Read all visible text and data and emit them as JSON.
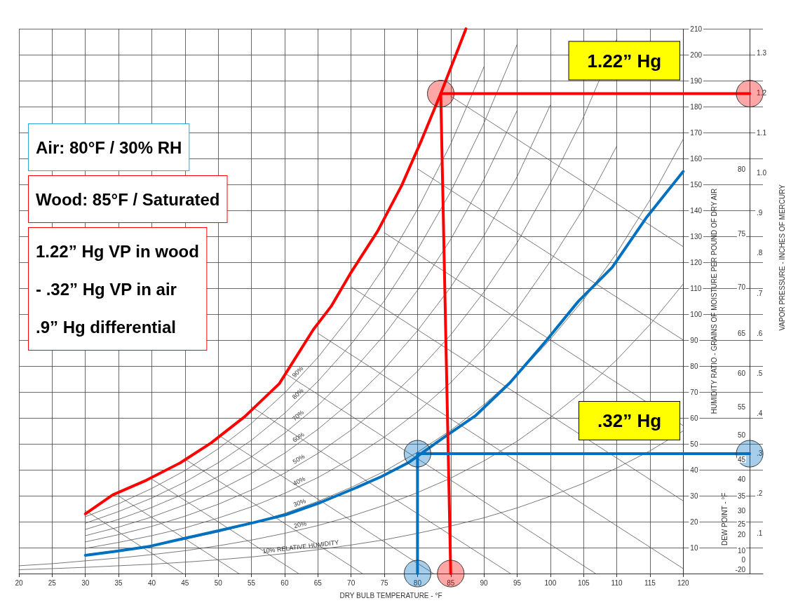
{
  "chart_data": {
    "type": "line",
    "xlabel": "DRY BULB TEMPERATURE - °F",
    "ylabel": "HUMIDITY RATIO - GRAINS OF MOISTURE PER POUND OF DRY AIR",
    "y2label": "VAPOR PRESSURE - INCHES OF MERCURY",
    "xlim": [
      20,
      132
    ],
    "xticks": [
      20,
      25,
      30,
      35,
      40,
      45,
      50,
      55,
      60,
      65,
      70,
      75,
      80,
      85,
      90,
      95,
      100,
      105,
      110,
      115,
      120
    ],
    "ylim": [
      0,
      210
    ],
    "yticks": [
      10,
      20,
      30,
      40,
      50,
      60,
      70,
      80,
      90,
      100,
      110,
      120,
      130,
      140,
      150,
      160,
      170,
      180,
      190,
      200,
      210
    ],
    "y2lim": [
      0,
      1.36
    ],
    "y2ticks": [
      {
        "value": 0.1,
        "label": ".1"
      },
      {
        "value": 0.2,
        "label": ".2"
      },
      {
        "value": 0.3,
        "label": ".3"
      },
      {
        "value": 0.4,
        "label": ".4"
      },
      {
        "value": 0.5,
        "label": ".5"
      },
      {
        "value": 0.6,
        "label": ".6"
      },
      {
        "value": 0.7,
        "label": ".7"
      },
      {
        "value": 0.8,
        "label": ".8"
      },
      {
        "value": 0.9,
        "label": ".9"
      },
      {
        "value": 1.0,
        "label": "1.0"
      },
      {
        "value": 1.1,
        "label": "1.1"
      },
      {
        "value": 1.2,
        "label": "1.2"
      },
      {
        "value": 1.3,
        "label": "1.3"
      }
    ],
    "grid": true,
    "marker": "none",
    "line_style": "solid",
    "ref_lines": [
      {
        "axis": "x",
        "value": 120,
        "color": "#333333"
      },
      {
        "axis": "x",
        "value": 130,
        "color": "#333333"
      }
    ],
    "annotations": [
      "Air: 80°F / 30% RH",
      "Wood: 85°F / Saturated",
      "1.22” Hg VP in wood\n- .32” Hg VP in air\n.9” Hg differential",
      "1.22” Hg",
      ".32” Hg",
      "DEW POINT - °F",
      "-20",
      "0",
      "10",
      "20",
      "25",
      "30",
      "35",
      "40",
      "45",
      "50",
      "55",
      "60",
      "65",
      "70",
      "75",
      "80"
    ],
    "series": [
      {
        "name": "10% RELATIVE HUMIDITY",
        "color": "#555555",
        "x": [
          20,
          25,
          30,
          35,
          40,
          45,
          50,
          55,
          60,
          65,
          70,
          75,
          80,
          85,
          90,
          95,
          100,
          105,
          110,
          115,
          120
        ],
        "values": [
          1.5,
          1.9,
          2.4,
          3,
          3.6,
          4.4,
          5.3,
          6.4,
          7.7,
          9.2,
          11,
          13,
          15.5,
          18.3,
          21.5,
          25.3,
          29.8,
          34.8,
          40.7,
          47.3,
          55
        ]
      },
      {
        "name": "20%",
        "color": "#555555",
        "x": [
          20,
          25,
          30,
          35,
          40,
          45,
          50,
          55,
          60,
          65,
          70,
          75,
          80,
          85,
          90,
          95,
          100,
          105,
          110,
          115,
          120
        ],
        "values": [
          3,
          3.8,
          4.9,
          6,
          7.3,
          8.8,
          10.7,
          12.9,
          15.5,
          18.5,
          22.1,
          26.3,
          31.2,
          36.8,
          43.4,
          51,
          60.2,
          70.4,
          82.4,
          96,
          111.6
        ]
      },
      {
        "name": "30%",
        "color": "#555555",
        "x": [
          30,
          35,
          40,
          45,
          50,
          55,
          60,
          65,
          70,
          75,
          80,
          85,
          90,
          95,
          100,
          105,
          110,
          115,
          120
        ],
        "values": [
          7.3,
          9,
          10.9,
          13.2,
          16,
          19.3,
          23.2,
          27.8,
          33.2,
          39.4,
          46.8,
          55.2,
          65.1,
          76.5,
          90.3,
          105.6,
          123.6,
          144,
          167.4
        ]
      },
      {
        "name": "40%",
        "color": "#555555",
        "x": [
          30,
          35,
          40,
          45,
          50,
          55,
          60,
          65,
          70,
          75,
          80,
          85,
          90,
          95,
          100,
          105,
          110
        ],
        "values": [
          9.7,
          12,
          14.6,
          17.6,
          21.4,
          25.7,
          30.9,
          37,
          44.2,
          52.6,
          62.4,
          73.6,
          86.8,
          102,
          120.4,
          140.8,
          164.8
        ]
      },
      {
        "name": "50%",
        "color": "#555555",
        "x": [
          30,
          35,
          40,
          45,
          50,
          55,
          60,
          65,
          70,
          75,
          80,
          85,
          90,
          95,
          100,
          105,
          110
        ],
        "values": [
          12.2,
          15,
          18.2,
          22.1,
          26.7,
          32.2,
          38.7,
          46.3,
          55.3,
          65.7,
          78,
          92,
          108.5,
          127.5,
          150.5,
          176,
          206
        ]
      },
      {
        "name": "60%",
        "color": "#555555",
        "x": [
          30,
          35,
          40,
          45,
          50,
          55,
          60,
          65,
          70,
          75,
          80,
          85,
          90,
          95,
          100
        ],
        "values": [
          14.6,
          17.9,
          21.8,
          26.5,
          32,
          38.6,
          46.4,
          55.6,
          66.3,
          78.8,
          93.6,
          110.4,
          130.2,
          153,
          180.6
        ]
      },
      {
        "name": "70%",
        "color": "#555555",
        "x": [
          30,
          35,
          40,
          45,
          50,
          55,
          60,
          65,
          70,
          75,
          80,
          85,
          90,
          95
        ],
        "values": [
          17,
          20.9,
          25.5,
          30.9,
          37.4,
          45,
          54.1,
          64.8,
          77.4,
          92,
          109.2,
          128.8,
          151.9,
          178.5
        ]
      },
      {
        "name": "80%",
        "color": "#555555",
        "x": [
          30,
          35,
          40,
          45,
          50,
          55,
          60,
          65,
          70,
          75,
          80,
          85,
          90,
          95
        ],
        "values": [
          19.4,
          23.9,
          29.1,
          35.3,
          42.7,
          51.4,
          61.8,
          74.1,
          88.4,
          105.1,
          124.8,
          147.2,
          173.6,
          204
        ]
      },
      {
        "name": "90%",
        "color": "#555555",
        "x": [
          30,
          35,
          40,
          45,
          50,
          55,
          60,
          65,
          70,
          75,
          80,
          85,
          90
        ],
        "values": [
          21.9,
          26.9,
          32.8,
          39.7,
          48.1,
          57.9,
          69.6,
          83.3,
          99.5,
          118.3,
          140.4,
          165.6,
          195.3
        ]
      },
      {
        "color": "#555555",
        "x": [
          30,
          44.7
        ],
        "values": [
          24.3,
          0
        ]
      },
      {
        "color": "#555555",
        "x": [
          35,
          53.1
        ],
        "values": [
          29.9,
          0
        ]
      },
      {
        "color": "#555555",
        "x": [
          40,
          62.1
        ],
        "values": [
          36.4,
          0
        ]
      },
      {
        "color": "#555555",
        "x": [
          45,
          71.7
        ],
        "values": [
          44.1,
          0
        ]
      },
      {
        "color": "#555555",
        "x": [
          50,
          82.4
        ],
        "values": [
          53.4,
          0
        ]
      },
      {
        "color": "#555555",
        "x": [
          55,
          94
        ],
        "values": [
          64.3,
          0
        ]
      },
      {
        "color": "#555555",
        "x": [
          60,
          106.8
        ],
        "values": [
          77.3,
          0
        ]
      },
      {
        "color": "#555555",
        "x": [
          65,
          120
        ],
        "values": [
          92.6,
          1.9
        ]
      },
      {
        "color": "#555555",
        "x": [
          70,
          120
        ],
        "values": [
          110.5,
          28
        ]
      },
      {
        "color": "#555555",
        "x": [
          75,
          120
        ],
        "values": [
          131.4,
          57
        ]
      },
      {
        "color": "#555555",
        "x": [
          80,
          120
        ],
        "values": [
          156,
          90
        ]
      },
      {
        "color": "#555555",
        "x": [
          85,
          120
        ],
        "values": [
          184,
          126
        ]
      },
      {
        "color": "#ff0000",
        "x": [
          30,
          34.1,
          39.2,
          44.3,
          48.9,
          54,
          59.2,
          64.3,
          67,
          69.9,
          74,
          77.6,
          80.6,
          83.5,
          87.3
        ],
        "values": [
          23,
          30.3,
          36,
          42.7,
          50.3,
          60.5,
          73.2,
          94,
          103,
          115.7,
          132,
          149.5,
          167,
          185,
          210
        ]
      },
      {
        "color": "#0070c0",
        "x": [
          30,
          34.6,
          39.7,
          44.8,
          50,
          55.1,
          60.2,
          65.3,
          70.4,
          74.5,
          78.6,
          83.7,
          88.8,
          93.9,
          99,
          104.2,
          109.3,
          114.4,
          120
        ],
        "values": [
          7,
          8.6,
          10.5,
          13.5,
          16.5,
          19.5,
          22.7,
          27.3,
          32.7,
          37.3,
          42.7,
          52,
          61,
          73.5,
          88.6,
          104.9,
          118,
          137,
          155
        ]
      },
      {
        "color": "#ff0000",
        "marker": "circle",
        "x": [
          85,
          83.5,
          130
        ],
        "values": [
          0,
          185,
          185
        ]
      },
      {
        "color": "#0070c0",
        "marker": "circle",
        "x": [
          80,
          80,
          130
        ],
        "values": [
          0,
          46.2,
          46.2
        ]
      }
    ]
  }
}
